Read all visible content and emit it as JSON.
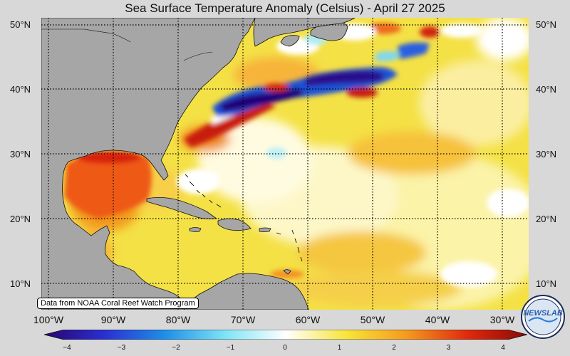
{
  "title": "Sea Surface Temperature Anomaly (Celsius) - April 27 2025",
  "latitude_labels": {
    "left": [
      "50°N",
      "40°N",
      "30°N",
      "20°N",
      "10°N"
    ],
    "right": [
      "50°N",
      "40°N",
      "30°N",
      "20°N",
      "10°N"
    ]
  },
  "longitude_labels": [
    "100°W",
    "90°W",
    "80°W",
    "70°W",
    "60°W",
    "50°W",
    "40°W",
    "30°W"
  ],
  "source_note": "Data from NOAA Coral Reef Watch Program",
  "logo_text": "NEWSLAB",
  "colorbar": {
    "ticks": [
      "−4",
      "−3",
      "−2",
      "−1",
      "0",
      "1",
      "2",
      "3",
      "4"
    ],
    "min": -4,
    "max": 4
  },
  "colors": {
    "land": "#a6a6a6",
    "background": "#d8d8d8"
  }
}
